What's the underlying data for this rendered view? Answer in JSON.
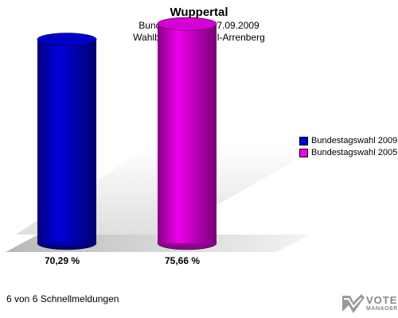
{
  "header": {
    "title": "Wuppertal",
    "subtitle": "Bundestagswahl 27.09.2009",
    "subtitle2": "Wahlbeteiligung Brill-Arrenberg"
  },
  "chart_data": {
    "type": "bar",
    "categories": [
      "Bundestagswahl 2009",
      "Bundestagswahl 2005"
    ],
    "values": [
      70.29,
      75.66
    ],
    "labels": [
      "70,29 %",
      "75,66 %"
    ],
    "colors": [
      "#0000dd",
      "#ee00ee"
    ],
    "ylim": [
      0,
      85
    ],
    "legend": {
      "position": "right",
      "items": [
        {
          "label": "Bundestagswahl 2009",
          "color": "#0000dd"
        },
        {
          "label": "Bundestagswahl 2005",
          "color": "#ee00ee"
        }
      ]
    }
  },
  "footer": {
    "text": "6 von 6 Schnellmeldungen"
  },
  "logo": {
    "line1": "VOTE",
    "line2": "MANAGER"
  }
}
